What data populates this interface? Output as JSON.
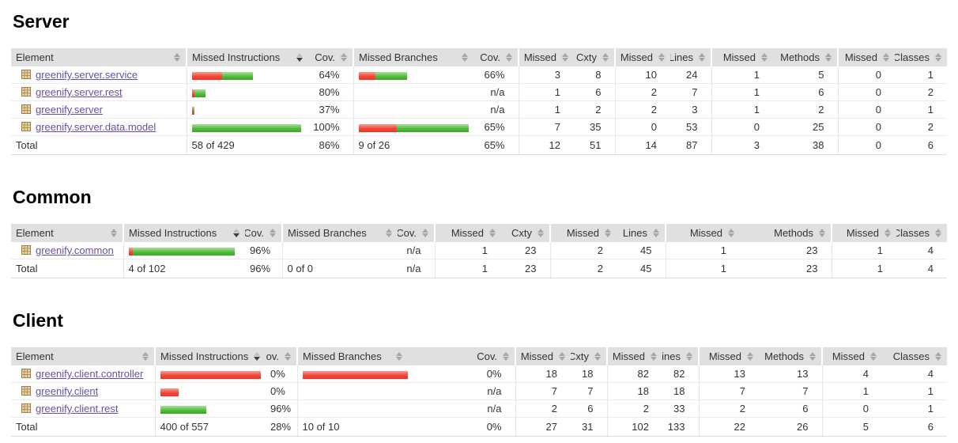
{
  "colors": {
    "bar_red": "#f4473a",
    "bar_green": "#52bd3c",
    "link": "#6b4fa0",
    "header_bg": "#e0e0e0"
  },
  "icons": {
    "package": "package-grid-icon",
    "sort": "sort-arrows-icon",
    "sort_active": "sort-desc-icon"
  },
  "sections": [
    {
      "title": "Server",
      "columns": [
        "Element",
        "Missed Instructions",
        "Cov.",
        "Missed Branches",
        "Cov.",
        "Missed",
        "Cxty",
        "Missed",
        "Lines",
        "Missed",
        "Methods",
        "Missed",
        "Classes"
      ],
      "rows": [
        {
          "element": "greenify.server.service",
          "instr_bar": {
            "red": 38,
            "green": 39
          },
          "instr_cov": "64%",
          "branch_bar": {
            "red": 21,
            "green": 40
          },
          "branch_cov": "66%",
          "missed_cxty": "3",
          "cxty": "8",
          "missed_lines": "10",
          "lines": "24",
          "missed_methods": "1",
          "methods": "5",
          "missed_classes": "0",
          "classes": "1"
        },
        {
          "element": "greenify.server.rest",
          "instr_bar": {
            "red": 3,
            "green": 14
          },
          "instr_cov": "80%",
          "branch_cov": "n/a",
          "missed_cxty": "1",
          "cxty": "6",
          "missed_lines": "2",
          "lines": "7",
          "missed_methods": "1",
          "methods": "6",
          "missed_classes": "0",
          "classes": "2"
        },
        {
          "element": "greenify.server",
          "instr_bar": {
            "red": 2,
            "green": 1
          },
          "instr_cov": "37%",
          "branch_cov": "n/a",
          "missed_cxty": "1",
          "cxty": "2",
          "missed_lines": "2",
          "lines": "3",
          "missed_methods": "1",
          "methods": "2",
          "missed_classes": "0",
          "classes": "1"
        },
        {
          "element": "greenify.server.data.model",
          "instr_bar": {
            "red": 0,
            "green": 138
          },
          "instr_cov": "100%",
          "branch_bar": {
            "red": 48,
            "green": 91
          },
          "branch_cov": "65%",
          "missed_cxty": "7",
          "cxty": "35",
          "missed_lines": "0",
          "lines": "53",
          "missed_methods": "0",
          "methods": "25",
          "missed_classes": "0",
          "classes": "2"
        }
      ],
      "total": {
        "label": "Total",
        "instr": "58 of 429",
        "instr_cov": "86%",
        "branch": "9 of 26",
        "branch_cov": "65%",
        "missed_cxty": "12",
        "cxty": "51",
        "missed_lines": "14",
        "lines": "87",
        "missed_methods": "3",
        "methods": "38",
        "missed_classes": "0",
        "classes": "6"
      }
    },
    {
      "title": "Common",
      "columns": [
        "Element",
        "Missed Instructions",
        "Cov.",
        "Missed Branches",
        "Cov.",
        "Missed",
        "Cxty",
        "Missed",
        "Lines",
        "Missed",
        "Methods",
        "Missed",
        "Classes"
      ],
      "rows": [
        {
          "element": "greenify.common",
          "instr_bar": {
            "red": 5,
            "green": 129
          },
          "instr_cov": "96%",
          "branch_cov": "n/a",
          "missed_cxty": "1",
          "cxty": "23",
          "missed_lines": "2",
          "lines": "45",
          "missed_methods": "1",
          "methods": "23",
          "missed_classes": "1",
          "classes": "4"
        }
      ],
      "total": {
        "label": "Total",
        "instr": "4 of 102",
        "instr_cov": "96%",
        "branch": "0 of 0",
        "branch_cov": "n/a",
        "missed_cxty": "1",
        "cxty": "23",
        "missed_lines": "2",
        "lines": "45",
        "missed_methods": "1",
        "methods": "23",
        "missed_classes": "1",
        "classes": "4"
      }
    },
    {
      "title": "Client",
      "columns": [
        "Element",
        "Missed Instructions",
        "Cov.",
        "Missed Branches",
        "Cov.",
        "Missed",
        "Cxty",
        "Missed",
        "Lines",
        "Missed",
        "Methods",
        "Missed",
        "Classes"
      ],
      "rows": [
        {
          "element": "greenify.client.controller",
          "instr_bar": {
            "red": 127,
            "green": 0
          },
          "instr_cov": "0%",
          "branch_bar": {
            "red": 133,
            "green": 0
          },
          "branch_cov": "0%",
          "missed_cxty": "18",
          "cxty": "18",
          "missed_lines": "82",
          "lines": "82",
          "missed_methods": "13",
          "methods": "13",
          "missed_classes": "4",
          "classes": "4"
        },
        {
          "element": "greenify.client",
          "instr_bar": {
            "red": 23,
            "green": 0
          },
          "instr_cov": "0%",
          "branch_cov": "n/a",
          "missed_cxty": "7",
          "cxty": "7",
          "missed_lines": "18",
          "lines": "18",
          "missed_methods": "7",
          "methods": "7",
          "missed_classes": "1",
          "classes": "1"
        },
        {
          "element": "greenify.client.rest",
          "instr_bar": {
            "red": 0,
            "green": 58
          },
          "instr_cov": "96%",
          "branch_cov": "n/a",
          "missed_cxty": "2",
          "cxty": "6",
          "missed_lines": "2",
          "lines": "33",
          "missed_methods": "2",
          "methods": "6",
          "missed_classes": "0",
          "classes": "1"
        }
      ],
      "total": {
        "label": "Total",
        "instr": "400 of 557",
        "instr_cov": "28%",
        "branch": "10 of 10",
        "branch_cov": "0%",
        "missed_cxty": "27",
        "cxty": "31",
        "missed_lines": "102",
        "lines": "133",
        "missed_methods": "22",
        "methods": "26",
        "missed_classes": "5",
        "classes": "6"
      }
    }
  ]
}
